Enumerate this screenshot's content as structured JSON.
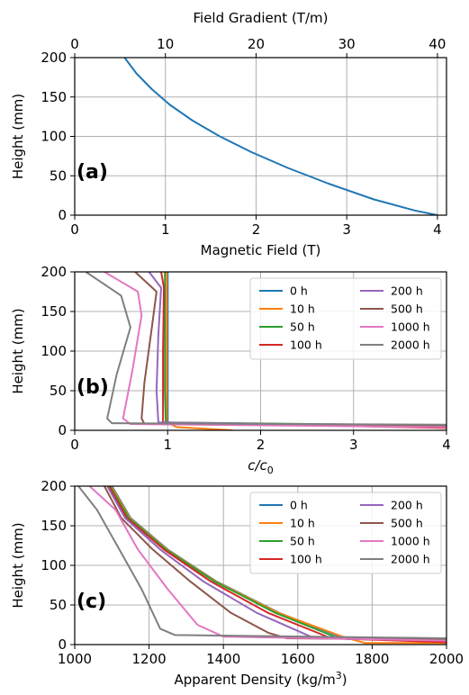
{
  "chart_data": [
    {
      "panel": "(a)",
      "type": "line",
      "xlabel": "Magnetic Field (T)",
      "x2label": "Field Gradient (T/m)",
      "ylabel": "Height (mm)",
      "xlim": [
        0,
        4.1
      ],
      "x2lim": [
        0,
        41
      ],
      "ylim": [
        0,
        200
      ],
      "xticks": [
        "0",
        "1",
        "2",
        "3",
        "4"
      ],
      "x2ticks": [
        "0",
        "10",
        "20",
        "30",
        "40"
      ],
      "yticks": [
        "0",
        "50",
        "100",
        "150",
        "200"
      ],
      "grid": true,
      "series": [
        {
          "color": "#1f77b4",
          "x": [
            0.55,
            0.68,
            0.85,
            1.05,
            1.3,
            1.6,
            1.95,
            2.35,
            2.8,
            3.3,
            3.75,
            4.0
          ],
          "y": [
            200,
            180,
            160,
            140,
            120,
            100,
            80,
            60,
            40,
            20,
            6,
            0
          ]
        }
      ]
    },
    {
      "panel": "(b)",
      "type": "line",
      "xlabel": "c/c",
      "xlabel_sub": "0",
      "ylabel": "Height (mm)",
      "xlim": [
        0,
        4
      ],
      "ylim": [
        0,
        200
      ],
      "xticks": [
        "0",
        "1",
        "2",
        "3",
        "4"
      ],
      "yticks": [
        "0",
        "50",
        "100",
        "150",
        "200"
      ],
      "grid": true,
      "legend_position": "top-right",
      "series": [
        {
          "name": "0 h",
          "color": "#1f77b4",
          "x": [
            1.0,
            1.0,
            1.0,
            4.0
          ],
          "y": [
            200,
            100,
            8,
            5
          ]
        },
        {
          "name": "10 h",
          "color": "#ff7f0e",
          "x": [
            0.99,
            0.99,
            0.99,
            1.1,
            1.7
          ],
          "y": [
            200,
            100,
            10,
            4,
            0
          ]
        },
        {
          "name": "50 h",
          "color": "#2ca02c",
          "x": [
            0.97,
            0.97,
            0.97,
            0.98,
            4.0
          ],
          "y": [
            200,
            150,
            50,
            10,
            6
          ]
        },
        {
          "name": "100 h",
          "color": "#d62728",
          "x": [
            0.93,
            0.96,
            0.95,
            0.95,
            4.0
          ],
          "y": [
            200,
            180,
            100,
            10,
            3
          ]
        },
        {
          "name": "200 h",
          "color": "#9467bd",
          "x": [
            0.8,
            0.93,
            0.9,
            0.88,
            0.9,
            4.0
          ],
          "y": [
            200,
            180,
            120,
            50,
            10,
            5
          ]
        },
        {
          "name": "500 h",
          "color": "#8c564b",
          "x": [
            0.65,
            0.88,
            0.83,
            0.75,
            0.72,
            0.75,
            4.0
          ],
          "y": [
            200,
            175,
            130,
            60,
            15,
            8,
            5
          ]
        },
        {
          "name": "1000 h",
          "color": "#e377c2",
          "x": [
            0.32,
            0.68,
            0.72,
            0.62,
            0.52,
            0.6,
            4.0
          ],
          "y": [
            200,
            175,
            145,
            75,
            15,
            8,
            4
          ]
        },
        {
          "name": "2000 h",
          "color": "#7f7f7f",
          "x": [
            0.12,
            0.5,
            0.6,
            0.45,
            0.35,
            0.4,
            4.0
          ],
          "y": [
            200,
            170,
            130,
            70,
            15,
            9,
            7
          ]
        }
      ]
    },
    {
      "panel": "(c)",
      "type": "line",
      "xlabel": "Apparent Density (kg/m",
      "xlabel_sup": "3",
      "xlabel_end": ")",
      "ylabel": "Height (mm)",
      "xlim": [
        1000,
        2000
      ],
      "ylim": [
        0,
        200
      ],
      "xticks": [
        "1000",
        "1200",
        "1400",
        "1600",
        "1800",
        "2000"
      ],
      "yticks": [
        "0",
        "50",
        "100",
        "150",
        "200"
      ],
      "grid": true,
      "legend_position": "top-right",
      "series": [
        {
          "name": "0 h",
          "color": "#1f77b4",
          "x": [
            1100,
            1150,
            1250,
            1380,
            1550,
            1730,
            2000
          ],
          "y": [
            200,
            160,
            120,
            80,
            40,
            7,
            5
          ]
        },
        {
          "name": "10 h",
          "color": "#ff7f0e",
          "x": [
            1098,
            1148,
            1248,
            1378,
            1548,
            1720,
            1780,
            2000
          ],
          "y": [
            200,
            160,
            120,
            80,
            40,
            10,
            2,
            2
          ]
        },
        {
          "name": "50 h",
          "color": "#2ca02c",
          "x": [
            1095,
            1145,
            1245,
            1375,
            1540,
            1710,
            2000
          ],
          "y": [
            200,
            160,
            120,
            80,
            40,
            8,
            7
          ]
        },
        {
          "name": "100 h",
          "color": "#d62728",
          "x": [
            1092,
            1140,
            1240,
            1365,
            1520,
            1690,
            2000
          ],
          "y": [
            200,
            160,
            120,
            80,
            40,
            8,
            3
          ]
        },
        {
          "name": "200 h",
          "color": "#9467bd",
          "x": [
            1088,
            1135,
            1230,
            1345,
            1490,
            1640,
            2000
          ],
          "y": [
            200,
            160,
            120,
            80,
            40,
            9,
            5
          ]
        },
        {
          "name": "500 h",
          "color": "#8c564b",
          "x": [
            1080,
            1125,
            1210,
            1310,
            1420,
            1520,
            1570,
            2000
          ],
          "y": [
            200,
            160,
            120,
            80,
            40,
            15,
            8,
            6
          ]
        },
        {
          "name": "1000 h",
          "color": "#e377c2",
          "x": [
            1040,
            1110,
            1170,
            1250,
            1330,
            1400,
            2000
          ],
          "y": [
            200,
            170,
            120,
            70,
            25,
            10,
            5
          ]
        },
        {
          "name": "2000 h",
          "color": "#7f7f7f",
          "x": [
            1010,
            1060,
            1120,
            1180,
            1230,
            1270,
            2000
          ],
          "y": [
            200,
            170,
            120,
            70,
            20,
            12,
            8
          ]
        }
      ]
    }
  ]
}
